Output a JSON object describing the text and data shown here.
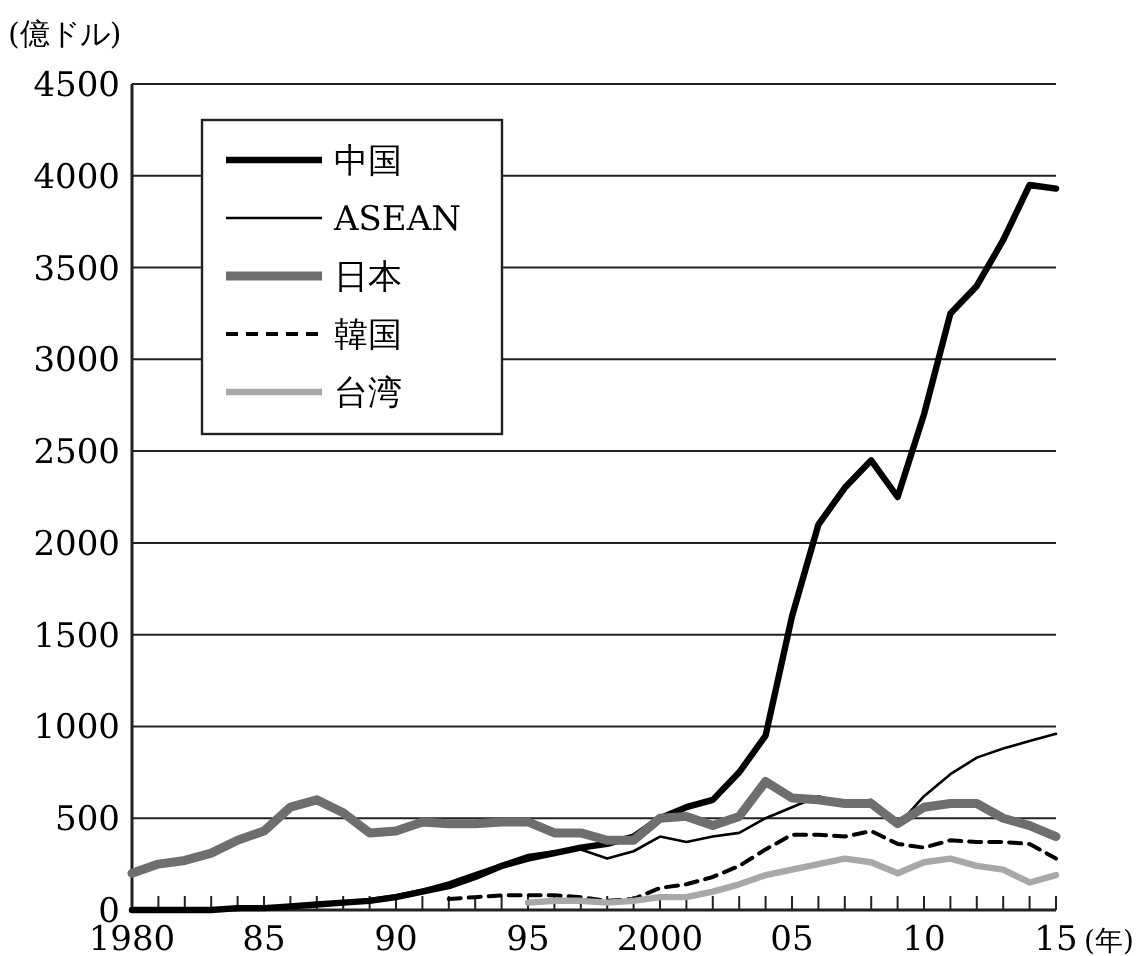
{
  "chart_data": {
    "type": "line",
    "ylabel": "(億ドル)",
    "xlabel": "(年)",
    "xlim": [
      1980,
      2015
    ],
    "ylim": [
      0,
      4500
    ],
    "yticks": [
      0,
      500,
      1000,
      1500,
      2000,
      2500,
      3000,
      3500,
      4000,
      4500
    ],
    "xticks": [
      1980,
      {
        "value": 1981,
        "label": null
      },
      {
        "value": 1982,
        "label": null
      },
      {
        "value": 1983,
        "label": null
      },
      {
        "value": 1984,
        "label": null
      },
      {
        "value": 1985,
        "label": "85"
      },
      {
        "value": 1986,
        "label": null
      },
      {
        "value": 1987,
        "label": null
      },
      {
        "value": 1988,
        "label": null
      },
      {
        "value": 1989,
        "label": null
      },
      {
        "value": 1990,
        "label": "90"
      },
      {
        "value": 1991,
        "label": null
      },
      {
        "value": 1992,
        "label": null
      },
      {
        "value": 1993,
        "label": null
      },
      {
        "value": 1994,
        "label": null
      },
      {
        "value": 1995,
        "label": "95"
      },
      {
        "value": 1996,
        "label": null
      },
      {
        "value": 1997,
        "label": null
      },
      {
        "value": 1998,
        "label": null
      },
      {
        "value": 1999,
        "label": null
      },
      2000,
      {
        "value": 2001,
        "label": null
      },
      {
        "value": 2002,
        "label": null
      },
      {
        "value": 2003,
        "label": null
      },
      {
        "value": 2004,
        "label": null
      },
      {
        "value": 2005,
        "label": "05"
      },
      {
        "value": 2006,
        "label": null
      },
      {
        "value": 2007,
        "label": null
      },
      {
        "value": 2008,
        "label": null
      },
      {
        "value": 2009,
        "label": null
      },
      {
        "value": 2010,
        "label": "10"
      },
      {
        "value": 2011,
        "label": null
      },
      {
        "value": 2012,
        "label": null
      },
      {
        "value": 2013,
        "label": null
      },
      {
        "value": 2014,
        "label": null
      },
      {
        "value": 2015,
        "label": "15"
      }
    ],
    "grid": "y",
    "legend": "top left",
    "marker": "none",
    "x": [
      1980,
      1981,
      1982,
      1983,
      1984,
      1985,
      1986,
      1987,
      1988,
      1989,
      1990,
      1991,
      1992,
      1993,
      1994,
      1995,
      1996,
      1997,
      1998,
      1999,
      2000,
      2001,
      2002,
      2003,
      2004,
      2005,
      2006,
      2007,
      2008,
      2009,
      2010,
      2011,
      2012,
      2013,
      2014,
      2015
    ],
    "series": [
      {
        "name": "中国",
        "color": "#000000",
        "line_style": "solid",
        "values": [
          0,
          0,
          0,
          0,
          10,
          10,
          20,
          30,
          40,
          50,
          70,
          100,
          130,
          180,
          240,
          280,
          310,
          340,
          360,
          400,
          500,
          560,
          600,
          750,
          950,
          1600,
          2100,
          2300,
          2450,
          2250,
          2700,
          3250,
          3400,
          3650,
          3950,
          3930
        ]
      },
      {
        "name": "ASEAN",
        "color": "#000000",
        "line_style": "solid",
        "values": [
          0,
          0,
          0,
          0,
          0,
          10,
          20,
          30,
          40,
          60,
          80,
          110,
          150,
          200,
          250,
          300,
          320,
          330,
          280,
          320,
          400,
          370,
          400,
          420,
          500,
          560,
          620,
          580,
          600,
          460,
          620,
          740,
          830,
          880,
          920,
          960
        ]
      },
      {
        "name": "日本",
        "color": "#6e6e6e",
        "line_style": "solid",
        "values": [
          200,
          250,
          270,
          310,
          380,
          430,
          560,
          600,
          530,
          420,
          430,
          480,
          470,
          470,
          480,
          480,
          420,
          420,
          380,
          380,
          500,
          510,
          460,
          510,
          700,
          610,
          600,
          580,
          580,
          470,
          560,
          580,
          580,
          500,
          460,
          400
        ]
      },
      {
        "name": "韓国",
        "color": "#000000",
        "line_style": "dashed",
        "values": [
          null,
          null,
          null,
          null,
          null,
          null,
          null,
          null,
          null,
          null,
          null,
          null,
          60,
          70,
          80,
          80,
          80,
          70,
          50,
          60,
          120,
          140,
          180,
          240,
          330,
          410,
          410,
          400,
          430,
          360,
          340,
          380,
          370,
          370,
          360,
          280
        ]
      },
      {
        "name": "台湾",
        "color": "#a8a8a8",
        "line_style": "solid",
        "values": [
          null,
          null,
          null,
          null,
          null,
          null,
          null,
          null,
          null,
          null,
          null,
          null,
          null,
          null,
          null,
          40,
          50,
          50,
          40,
          50,
          70,
          70,
          100,
          140,
          190,
          220,
          250,
          280,
          260,
          200,
          260,
          280,
          240,
          220,
          150,
          190
        ]
      }
    ]
  }
}
